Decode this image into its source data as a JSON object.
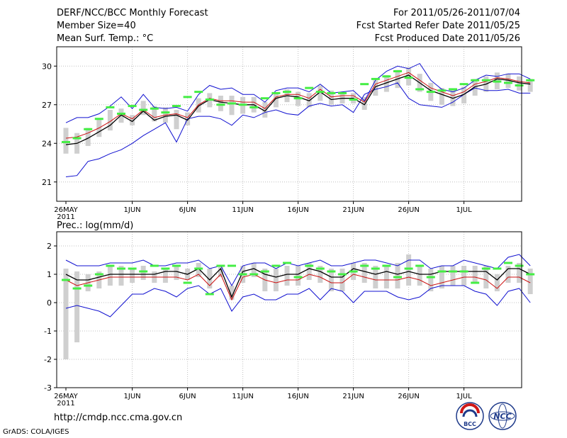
{
  "header": {
    "line1_left": "DERF/NCC/BCC Monthly Forecast",
    "line2_left": "Member Size=40",
    "line3_left": "Mean Surf. Temp.: °C",
    "line1_right": "For 2011/05/26-2011/07/04",
    "line2_right": "Fcst Started Refer Date 2011/05/25",
    "line3_right": "Fcst Produced Date 2011/05/26"
  },
  "footer": {
    "url": "http://cmdp.ncc.cma.gov.cn",
    "grads": "GrADS: COLA/IGES",
    "logo_bcc_text": "BCC",
    "logo_ncc_text": "NCC"
  },
  "colors": {
    "max_line": "#1010d0",
    "min_line": "#1010d0",
    "mean_line": "#000000",
    "median_line": "#cc1010",
    "box": "#cfcfcf",
    "climate_mark": "#44ee44",
    "grid": "#c0c0c0"
  },
  "chart_data": [
    {
      "type": "line",
      "title": "Mean Surf. Temp.: °C",
      "x_start_day": 1,
      "x_tick_labels": [
        {
          "day": 1,
          "label": "26MAY",
          "sub": "2011"
        },
        {
          "day": 7,
          "label": "1JUN"
        },
        {
          "day": 12,
          "label": "6JUN"
        },
        {
          "day": 17,
          "label": "11JUN"
        },
        {
          "day": 22,
          "label": "16JUN"
        },
        {
          "day": 27,
          "label": "21JUN"
        },
        {
          "day": 32,
          "label": "26JUN"
        },
        {
          "day": 37,
          "label": "1JUL"
        }
      ],
      "ylim": [
        19.5,
        31.5
      ],
      "y_ticks": [
        21,
        24,
        27,
        30
      ],
      "series": [
        {
          "name": "max",
          "values": [
            25.6,
            26.0,
            26.0,
            26.3,
            26.9,
            27.6,
            26.7,
            27.8,
            26.8,
            26.7,
            26.8,
            26.5,
            27.8,
            28.5,
            28.2,
            28.3,
            27.8,
            27.8,
            27.2,
            28.1,
            28.3,
            28.3,
            28.0,
            28.6,
            27.9,
            28.0,
            28.1,
            27.3,
            28.9,
            29.6,
            30.0,
            29.8,
            30.2,
            28.9,
            28.2,
            28.0,
            28.3,
            28.9,
            29.3,
            29.2,
            29.4,
            29.4,
            29.0
          ]
        },
        {
          "name": "mean",
          "values": [
            23.9,
            24.0,
            24.4,
            24.9,
            25.4,
            26.2,
            25.7,
            26.5,
            25.8,
            26.1,
            26.2,
            25.8,
            26.9,
            27.4,
            27.2,
            27.1,
            27.0,
            27.0,
            26.5,
            27.5,
            27.7,
            27.6,
            27.3,
            28.0,
            27.4,
            27.5,
            27.5,
            27.0,
            28.4,
            28.7,
            29.0,
            29.3,
            28.7,
            28.1,
            27.8,
            27.5,
            27.8,
            28.4,
            28.6,
            29.0,
            28.9,
            28.7,
            28.6
          ]
        },
        {
          "name": "median",
          "values": [
            24.4,
            24.5,
            24.8,
            25.2,
            25.7,
            26.3,
            25.9,
            26.6,
            26.0,
            26.2,
            26.3,
            26.0,
            27.0,
            27.5,
            27.3,
            27.3,
            27.2,
            27.2,
            26.7,
            27.6,
            27.8,
            27.8,
            27.5,
            28.2,
            27.6,
            27.7,
            27.7,
            27.2,
            28.6,
            28.9,
            29.2,
            29.5,
            28.9,
            28.3,
            28.0,
            27.7,
            28.0,
            28.6,
            28.8,
            29.1,
            29.0,
            28.8,
            28.7
          ]
        },
        {
          "name": "min",
          "values": [
            21.4,
            21.5,
            22.6,
            22.8,
            23.2,
            23.5,
            24.0,
            24.6,
            25.1,
            25.6,
            24.1,
            25.9,
            26.1,
            26.1,
            25.9,
            25.4,
            26.2,
            26.0,
            26.4,
            26.6,
            26.3,
            26.2,
            26.9,
            27.1,
            26.9,
            27.0,
            26.4,
            27.8,
            28.2,
            28.4,
            28.7,
            27.5,
            27.0,
            26.9,
            26.8,
            27.2,
            27.8,
            28.3,
            28.1,
            28.1,
            28.2,
            27.9,
            27.9
          ]
        }
      ],
      "boxes": [
        [
          23.2,
          25.2
        ],
        [
          23.2,
          24.8
        ],
        [
          23.8,
          25.2
        ],
        [
          24.5,
          25.9
        ],
        [
          25.0,
          26.6
        ],
        [
          25.6,
          26.7
        ],
        [
          25.4,
          26.2
        ],
        [
          26.2,
          27.3
        ],
        [
          25.7,
          26.9
        ],
        [
          25.6,
          26.8
        ],
        [
          25.1,
          26.6
        ],
        [
          25.4,
          26.4
        ],
        [
          26.4,
          27.5
        ],
        [
          26.8,
          27.9
        ],
        [
          26.5,
          27.7
        ],
        [
          26.2,
          27.7
        ],
        [
          26.3,
          27.6
        ],
        [
          26.4,
          27.6
        ],
        [
          26.0,
          27.2
        ],
        [
          26.8,
          27.9
        ],
        [
          27.2,
          28.2
        ],
        [
          26.9,
          28.0
        ],
        [
          26.8,
          27.9
        ],
        [
          27.3,
          28.5
        ],
        [
          27.0,
          28.1
        ],
        [
          27.1,
          28.0
        ],
        [
          27.1,
          27.9
        ],
        [
          26.6,
          27.6
        ],
        [
          27.7,
          28.9
        ],
        [
          28.0,
          29.3
        ],
        [
          28.3,
          29.7
        ],
        [
          28.5,
          29.9
        ],
        [
          28.0,
          29.4
        ],
        [
          27.3,
          28.7
        ],
        [
          27.0,
          28.3
        ],
        [
          26.9,
          28.2
        ],
        [
          27.1,
          28.4
        ],
        [
          27.7,
          29.0
        ],
        [
          28.0,
          29.2
        ],
        [
          28.2,
          29.5
        ],
        [
          28.3,
          29.4
        ],
        [
          28.1,
          29.2
        ],
        [
          28.0,
          29.0
        ]
      ],
      "climate": [
        24.1,
        24.4,
        25.1,
        25.9,
        26.8,
        26.3,
        26.9,
        26.6,
        26.7,
        26.4,
        26.9,
        27.6,
        28.0,
        27.4,
        27.0,
        27.1,
        27.0,
        26.8,
        27.5,
        27.9,
        28.0,
        27.5,
        28.3,
        28.0,
        27.9,
        27.9,
        27.4,
        28.6,
        29.0,
        29.2,
        29.6,
        29.1,
        28.2,
        28.0,
        28.1,
        28.2,
        28.6,
        28.9,
        28.9,
        28.8,
        28.7,
        28.5,
        28.9
      ]
    },
    {
      "type": "line",
      "title": "Prec.: log(mm/d)",
      "x_start_day": 1,
      "x_tick_labels": [
        {
          "day": 1,
          "label": "26MAY",
          "sub": "2011"
        },
        {
          "day": 7,
          "label": "1JUN"
        },
        {
          "day": 12,
          "label": "6JUN"
        },
        {
          "day": 17,
          "label": "11JUN"
        },
        {
          "day": 22,
          "label": "16JUN"
        },
        {
          "day": 27,
          "label": "21JUN"
        },
        {
          "day": 32,
          "label": "26JUN"
        },
        {
          "day": 37,
          "label": "1JUL"
        }
      ],
      "ylim": [
        -3,
        2.5
      ],
      "y_ticks": [
        -3,
        -2,
        -1,
        0,
        1,
        2
      ],
      "series": [
        {
          "name": "max",
          "values": [
            1.5,
            1.3,
            1.3,
            1.3,
            1.4,
            1.4,
            1.4,
            1.5,
            1.3,
            1.3,
            1.4,
            1.4,
            1.5,
            1.2,
            1.3,
            0.6,
            1.3,
            1.4,
            1.4,
            1.2,
            1.4,
            1.3,
            1.4,
            1.5,
            1.3,
            1.3,
            1.4,
            1.5,
            1.5,
            1.4,
            1.3,
            1.5,
            1.5,
            1.2,
            1.3,
            1.3,
            1.5,
            1.4,
            1.3,
            1.2,
            1.6,
            1.7,
            1.3
          ]
        },
        {
          "name": "mean",
          "values": [
            1.0,
            0.8,
            0.8,
            0.9,
            1.0,
            1.0,
            1.0,
            1.0,
            1.0,
            1.1,
            1.1,
            1.0,
            1.2,
            0.8,
            1.2,
            0.2,
            1.1,
            1.2,
            1.0,
            0.9,
            1.0,
            1.0,
            1.2,
            1.1,
            0.9,
            0.9,
            1.2,
            1.1,
            1.0,
            1.1,
            1.0,
            1.1,
            1.0,
            1.0,
            1.1,
            1.1,
            1.1,
            1.1,
            1.1,
            0.8,
            1.2,
            1.2,
            1.0
          ]
        },
        {
          "name": "median",
          "values": [
            0.8,
            0.6,
            0.7,
            0.8,
            0.9,
            0.9,
            0.9,
            0.9,
            0.9,
            0.9,
            0.9,
            0.8,
            1.0,
            0.6,
            1.0,
            0.1,
            0.9,
            1.0,
            0.8,
            0.7,
            0.8,
            0.8,
            1.0,
            0.9,
            0.7,
            0.7,
            1.0,
            0.9,
            0.8,
            0.8,
            0.8,
            0.9,
            0.8,
            0.6,
            0.7,
            0.8,
            0.9,
            0.9,
            0.8,
            0.5,
            0.9,
            0.9,
            0.7
          ]
        },
        {
          "name": "min",
          "values": [
            -0.2,
            -0.1,
            -0.2,
            -0.3,
            -0.5,
            -0.1,
            0.3,
            0.3,
            0.5,
            0.4,
            0.2,
            0.5,
            0.6,
            0.3,
            0.5,
            -0.3,
            0.2,
            0.3,
            0.1,
            0.1,
            0.3,
            0.3,
            0.5,
            0.1,
            0.5,
            0.4,
            0.0,
            0.4,
            0.4,
            0.4,
            0.2,
            0.1,
            0.2,
            0.5,
            0.6,
            0.6,
            0.6,
            0.4,
            0.3,
            -0.1,
            0.4,
            0.5,
            0.0
          ]
        }
      ],
      "boxes": [
        [
          -2.0,
          1.2
        ],
        [
          -1.4,
          1.1
        ],
        [
          0.4,
          1.0
        ],
        [
          0.5,
          1.1
        ],
        [
          0.6,
          1.3
        ],
        [
          0.6,
          1.3
        ],
        [
          0.7,
          1.2
        ],
        [
          0.8,
          1.3
        ],
        [
          0.7,
          1.1
        ],
        [
          0.7,
          1.2
        ],
        [
          0.8,
          1.3
        ],
        [
          0.8,
          1.2
        ],
        [
          0.9,
          1.4
        ],
        [
          0.5,
          1.2
        ],
        [
          0.9,
          1.3
        ],
        [
          0.1,
          0.6
        ],
        [
          0.7,
          1.3
        ],
        [
          0.9,
          1.4
        ],
        [
          0.4,
          1.2
        ],
        [
          0.4,
          1.2
        ],
        [
          0.6,
          1.3
        ],
        [
          0.6,
          1.3
        ],
        [
          0.8,
          1.4
        ],
        [
          0.7,
          1.3
        ],
        [
          0.4,
          1.2
        ],
        [
          0.4,
          1.2
        ],
        [
          0.8,
          1.4
        ],
        [
          0.7,
          1.4
        ],
        [
          0.5,
          1.3
        ],
        [
          0.5,
          1.3
        ],
        [
          0.5,
          1.4
        ],
        [
          0.6,
          1.7
        ],
        [
          0.6,
          1.3
        ],
        [
          0.4,
          1.2
        ],
        [
          0.5,
          1.3
        ],
        [
          0.6,
          1.3
        ],
        [
          0.6,
          1.3
        ],
        [
          0.7,
          1.3
        ],
        [
          0.5,
          1.3
        ],
        [
          0.4,
          1.0
        ],
        [
          0.7,
          1.3
        ],
        [
          0.7,
          1.4
        ],
        [
          0.3,
          1.2
        ]
      ],
      "climate": [
        0.8,
        0.5,
        0.6,
        1.0,
        1.3,
        1.2,
        1.2,
        1.1,
        1.3,
        1.2,
        1.3,
        0.7,
        1.2,
        0.3,
        1.3,
        1.3,
        1.0,
        1.0,
        1.1,
        1.3,
        1.4,
        0.9,
        1.3,
        1.2,
        1.1,
        1.0,
        1.1,
        1.3,
        1.2,
        1.3,
        0.9,
        1.2,
        1.3,
        0.9,
        1.1,
        1.1,
        1.1,
        0.7,
        1.2,
        1.2,
        1.4,
        1.3,
        1.0
      ]
    }
  ]
}
